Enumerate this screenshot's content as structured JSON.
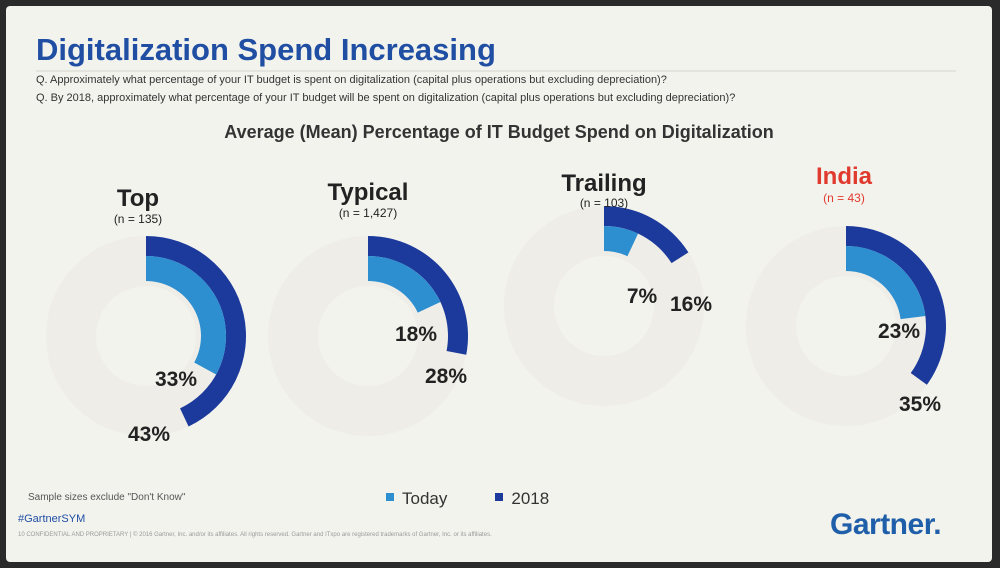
{
  "slide": {
    "title": "Digitalization Spend Increasing",
    "questions": [
      "Q. Approximately what percentage of your IT budget is spent on digitalization (capital plus operations but excluding depreciation)?",
      "Q. By 2018, approximately what percentage of your IT budget will be spent on digitalization (capital plus operations but excluding depreciation)?"
    ],
    "footnote": "Sample sizes exclude \"Don't Know\"",
    "hashtag": "#GartnerSYM",
    "confidential": "10   CONFIDENTIAL AND PROPRIETARY  |  © 2016 Gartner, Inc. and/or its affiliates. All rights reserved. Gartner and ITxpo are registered trademarks of Gartner, Inc. or its affiliates.",
    "logo": "Gartner"
  },
  "colors": {
    "today": "#2e8fd0",
    "year_2018": "#1c3a9c",
    "track": "#e9e8e1",
    "title": "#1f4ea3",
    "highlight": "#e03a2f"
  },
  "chart_data": {
    "type": "radial-bar",
    "title": "Average (Mean) Percentage of IT Budget Spend on Digitalization",
    "unit": "%",
    "legend": {
      "position": "bottom-center"
    },
    "series": [
      {
        "name": "Today",
        "color": "#2e8fd0"
      },
      {
        "name": "2018",
        "color": "#1c3a9c"
      }
    ],
    "groups": [
      {
        "name": "Top",
        "n": "(n = 135)",
        "today": 33,
        "year_2018": 43,
        "today_label": "33%",
        "year_2018_label": "43%",
        "highlight": false
      },
      {
        "name": "Typical",
        "n": "(n = 1,427)",
        "today": 18,
        "year_2018": 28,
        "today_label": "18%",
        "year_2018_label": "28%",
        "highlight": false
      },
      {
        "name": "Trailing",
        "n": "(n = 103)",
        "today": 7,
        "year_2018": 16,
        "today_label": "7%",
        "year_2018_label": "16%",
        "highlight": false
      },
      {
        "name": "India",
        "n": "(n = 43)",
        "today": 23,
        "year_2018": 35,
        "today_label": "23%",
        "year_2018_label": "35%",
        "highlight": true
      }
    ]
  }
}
